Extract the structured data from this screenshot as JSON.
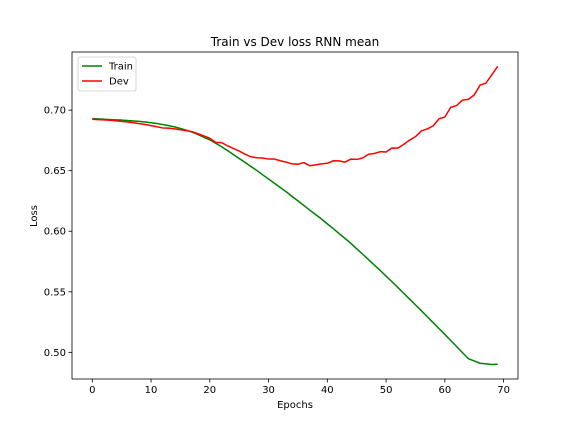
{
  "chart_data": {
    "type": "line",
    "title": "Train vs Dev loss RNN mean",
    "xlabel": "Epochs",
    "ylabel": "Loss",
    "xlim": [
      -3.45,
      72.45
    ],
    "ylim": [
      0.478,
      0.748
    ],
    "xticks": [
      0,
      10,
      20,
      30,
      40,
      50,
      60,
      70
    ],
    "yticks": [
      0.5,
      0.55,
      0.6,
      0.65,
      0.7
    ],
    "ytick_labels": [
      "0.50",
      "0.55",
      "0.60",
      "0.65",
      "0.70"
    ],
    "grid": false,
    "legend_position": "top-left",
    "series": [
      {
        "name": "Train",
        "color": "#008000",
        "x": [
          0,
          1,
          2,
          3,
          4,
          5,
          6,
          7,
          8,
          9,
          10,
          11,
          12,
          13,
          14,
          15,
          16,
          17,
          18,
          19,
          20,
          21,
          22,
          23,
          24,
          25,
          26,
          27,
          28,
          29,
          30,
          31,
          32,
          33,
          34,
          35,
          36,
          37,
          38,
          39,
          40,
          41,
          42,
          43,
          44,
          45,
          46,
          47,
          48,
          49,
          50,
          51,
          52,
          53,
          54,
          55,
          56,
          57,
          58,
          59,
          60,
          61,
          62,
          63,
          64,
          65,
          66,
          67,
          68,
          69
        ],
        "y": [
          0.693,
          0.6928,
          0.6925,
          0.6922,
          0.692,
          0.6918,
          0.6914,
          0.691,
          0.6907,
          0.6902,
          0.6896,
          0.689,
          0.6881,
          0.6872,
          0.6862,
          0.6849,
          0.6834,
          0.6818,
          0.6798,
          0.6775,
          0.6755,
          0.6727,
          0.6698,
          0.6667,
          0.6634,
          0.6601,
          0.6569,
          0.6535,
          0.6502,
          0.6466,
          0.6431,
          0.6396,
          0.6361,
          0.6326,
          0.6288,
          0.6251,
          0.6213,
          0.6175,
          0.6138,
          0.6101,
          0.6061,
          0.6022,
          0.5981,
          0.5941,
          0.59,
          0.5855,
          0.5811,
          0.5766,
          0.5721,
          0.5676,
          0.563,
          0.5583,
          0.5536,
          0.5488,
          0.544,
          0.5392,
          0.5344,
          0.5295,
          0.5246,
          0.5197,
          0.5148,
          0.5098,
          0.5048,
          0.4998,
          0.4948,
          0.4929,
          0.491,
          0.4905,
          0.49,
          0.4902
        ]
      },
      {
        "name": "Dev",
        "color": "#ff0000",
        "x": [
          0,
          1,
          2,
          3,
          4,
          5,
          6,
          7,
          8,
          9,
          10,
          11,
          12,
          13,
          14,
          15,
          16,
          17,
          18,
          19,
          20,
          21,
          22,
          23,
          24,
          25,
          26,
          27,
          28,
          29,
          30,
          31,
          32,
          33,
          34,
          35,
          36,
          37,
          38,
          39,
          40,
          41,
          42,
          43,
          44,
          45,
          46,
          47,
          48,
          49,
          50,
          51,
          52,
          53,
          54,
          55,
          56,
          57,
          58,
          59,
          60,
          61,
          62,
          63,
          64,
          65,
          66,
          67,
          68,
          69
        ],
        "y": [
          0.6925,
          0.6922,
          0.692,
          0.6916,
          0.6912,
          0.6907,
          0.6902,
          0.6896,
          0.6889,
          0.6881,
          0.6872,
          0.6863,
          0.6853,
          0.6851,
          0.6845,
          0.6838,
          0.6831,
          0.6822,
          0.6805,
          0.6787,
          0.6768,
          0.6734,
          0.6732,
          0.6706,
          0.6684,
          0.6662,
          0.6636,
          0.6615,
          0.6607,
          0.6605,
          0.6596,
          0.6596,
          0.6582,
          0.6571,
          0.6556,
          0.6553,
          0.6567,
          0.6541,
          0.6548,
          0.6556,
          0.6561,
          0.6582,
          0.6581,
          0.6571,
          0.6595,
          0.6593,
          0.6605,
          0.6636,
          0.6642,
          0.6657,
          0.6654,
          0.6687,
          0.6686,
          0.6717,
          0.6752,
          0.6781,
          0.6828,
          0.6845,
          0.6869,
          0.6929,
          0.6943,
          0.7023,
          0.7038,
          0.7083,
          0.7089,
          0.7126,
          0.7207,
          0.7223,
          0.7293,
          0.7362
        ]
      }
    ]
  }
}
